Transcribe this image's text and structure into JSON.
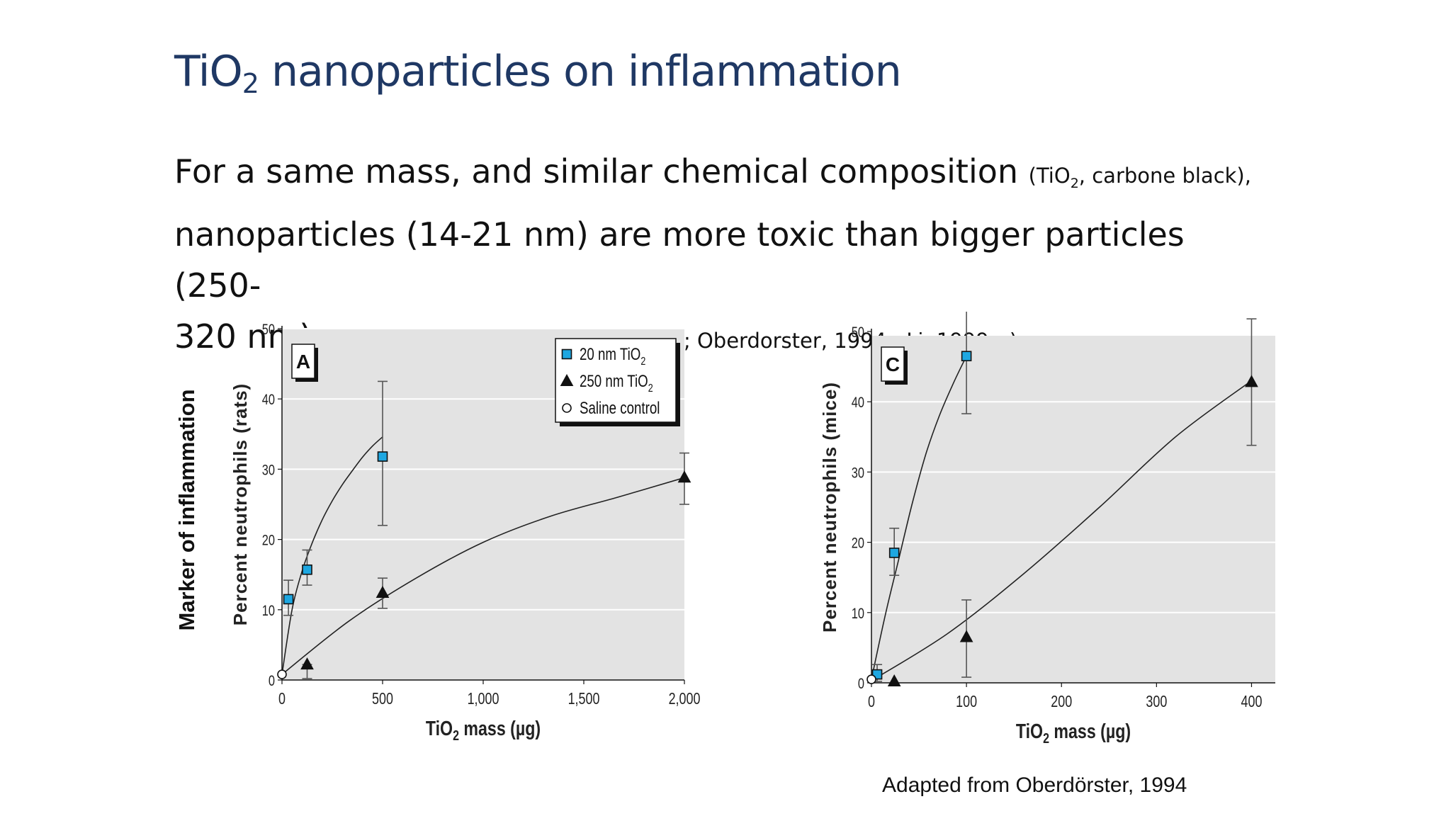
{
  "slide": {
    "title_main": "TiO",
    "title_sub": "2",
    "title_rest": " nanoparticles on inflammation",
    "line1_main": "For a same mass, and similar chemical composition ",
    "line1_small_a": "(TiO",
    "line1_small_sub": "2",
    "line1_small_b": ", carbone black),",
    "line2": "nanoparticles (14-21 nm) are more toxic than bigger particles (250-",
    "line3_main": "320 nm) ",
    "line3_small": "from the same nature (Ferin, 1992 ; Oberdorster, 1994 ; Li, 1999…)",
    "side_label": "Marker of inflammation",
    "caption": "Adapted from Oberdörster, 1994"
  },
  "chart_data": [
    {
      "type": "scatter",
      "panel_label": "A",
      "ylabel": "Percent neutrophils (rats)",
      "xlabel_main": "TiO",
      "xlabel_sub": "2",
      "xlabel_rest": " mass (µg)",
      "xlim": [
        0,
        2000
      ],
      "ylim": [
        0,
        50
      ],
      "xticks": [
        0,
        500,
        1000,
        1500,
        2000
      ],
      "xtick_labels": [
        "0",
        "500",
        "1,000",
        "1,500",
        "2,000"
      ],
      "yticks": [
        0,
        10,
        20,
        30,
        40,
        50
      ],
      "ytick_labels": [
        "0",
        "10",
        "20",
        "30",
        "40",
        "50"
      ],
      "grid": true,
      "legend_position": "top-right",
      "legend": [
        {
          "marker": "square",
          "main": "20 nm TiO",
          "sub": "2"
        },
        {
          "marker": "triangle",
          "main": "250 nm TiO",
          "sub": "2"
        },
        {
          "marker": "circle",
          "main": "Saline control",
          "sub": ""
        }
      ],
      "series": [
        {
          "marker": "square",
          "x": [
            32,
            125,
            500
          ],
          "y": [
            11.5,
            15.7,
            31.8
          ],
          "err_low": [
            9.2,
            13.5,
            22.0
          ],
          "err_high": [
            14.2,
            18.5,
            42.5
          ]
        },
        {
          "marker": "triangle",
          "x": [
            125,
            500,
            2000
          ],
          "y": [
            2.2,
            12.4,
            28.8
          ],
          "err_low": [
            0.2,
            10.2,
            25.0
          ],
          "err_high": [
            2.2,
            14.5,
            32.3
          ]
        },
        {
          "marker": "circle",
          "x": [
            0
          ],
          "y": [
            0.8
          ],
          "err_low": [
            0.8
          ],
          "err_high": [
            0.8
          ]
        }
      ],
      "fits": [
        {
          "marker": "square",
          "x_end": 500,
          "y": [
            0.8,
            10,
            15.5,
            19.5,
            22.8,
            25.5,
            27.8,
            29.8,
            31.7,
            33.3,
            34.6
          ]
        },
        {
          "marker": "triangle",
          "x_end": 2000,
          "y": [
            0.8,
            8.4,
            14.5,
            19.6,
            23.3,
            26.0,
            28.8
          ]
        }
      ],
      "line_colors": {
        "square_fill": "#1ea7e1",
        "marker_stroke": "#111111",
        "background": "#e3e3e3",
        "grid": "#ffffff"
      }
    },
    {
      "type": "scatter",
      "panel_label": "C",
      "ylabel": "Percent neutrophils (mice)",
      "xlabel_main": "TiO",
      "xlabel_sub": "2",
      "xlabel_rest": " mass (µg)",
      "xlim": [
        0,
        425
      ],
      "ylim": [
        0,
        50
      ],
      "xticks": [
        0,
        100,
        200,
        300,
        400
      ],
      "xtick_labels": [
        "0",
        "100",
        "200",
        "300",
        "400"
      ],
      "yticks": [
        0,
        10,
        20,
        30,
        40,
        50
      ],
      "ytick_labels": [
        "0",
        "10",
        "20",
        "30",
        "40",
        "50"
      ],
      "grid": true,
      "series": [
        {
          "marker": "square",
          "x": [
            6,
            24,
            100
          ],
          "y": [
            1.2,
            18.5,
            46.5
          ],
          "err_low": [
            0.2,
            15.3,
            38.3
          ],
          "err_high": [
            2.6,
            22.0,
            54.0
          ]
        },
        {
          "marker": "triangle",
          "x": [
            24,
            100,
            400
          ],
          "y": [
            0.2,
            6.5,
            42.8
          ],
          "err_low": [
            0.2,
            0.8,
            33.8
          ],
          "err_high": [
            0.2,
            11.8,
            51.8
          ]
        },
        {
          "marker": "circle",
          "x": [
            0
          ],
          "y": [
            0.5
          ],
          "err_low": [
            0.5
          ],
          "err_high": [
            0.5
          ]
        }
      ],
      "fits": [
        {
          "marker": "square",
          "x_end": 100,
          "y": [
            0.5,
            9.5,
            17.5,
            25.5,
            32.5,
            38.0,
            42.5,
            46.5
          ]
        },
        {
          "marker": "triangle",
          "x_end": 400,
          "y": [
            0.3,
            7.0,
            15.5,
            25.0,
            35.0,
            43.0
          ]
        }
      ],
      "line_colors": {
        "square_fill": "#1ea7e1",
        "marker_stroke": "#111111",
        "background": "#e3e3e3",
        "grid": "#ffffff"
      }
    }
  ]
}
